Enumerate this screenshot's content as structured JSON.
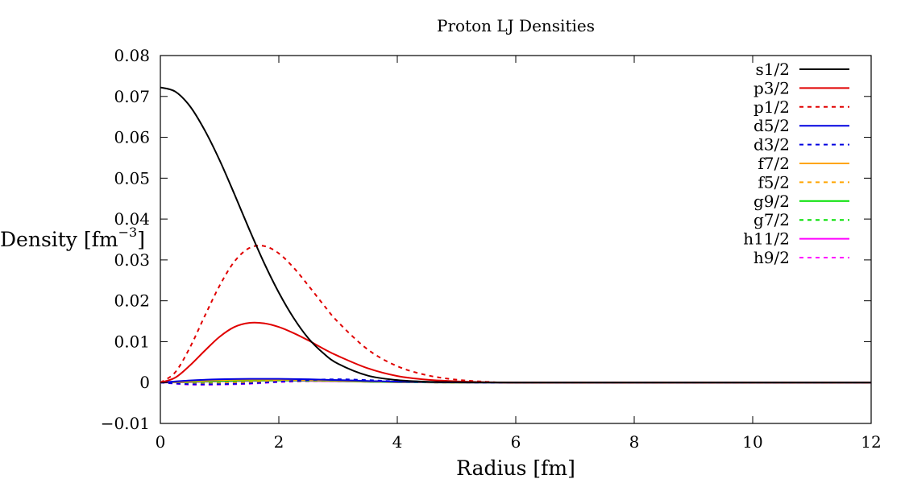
{
  "chart_data": {
    "type": "line",
    "title": "Proton LJ Densities",
    "xlabel": "Radius [fm]",
    "ylabel": "Density [fm",
    "ylabel_sup": "−3",
    "ylabel_close": "]",
    "xlim": [
      0,
      12
    ],
    "ylim": [
      -0.01,
      0.08
    ],
    "x_ticks": [
      {
        "value": 0,
        "label": "0"
      },
      {
        "value": 2,
        "label": "2"
      },
      {
        "value": 4,
        "label": "4"
      },
      {
        "value": 6,
        "label": "6"
      },
      {
        "value": 8,
        "label": "8"
      },
      {
        "value": 10,
        "label": "10"
      },
      {
        "value": 12,
        "label": "12"
      }
    ],
    "y_ticks": [
      {
        "value": -0.01,
        "label": "−0.01"
      },
      {
        "value": 0,
        "label": "0"
      },
      {
        "value": 0.01,
        "label": "0.01"
      },
      {
        "value": 0.02,
        "label": "0.02"
      },
      {
        "value": 0.03,
        "label": "0.03"
      },
      {
        "value": 0.04,
        "label": "0.04"
      },
      {
        "value": 0.05,
        "label": "0.05"
      },
      {
        "value": 0.06,
        "label": "0.06"
      },
      {
        "value": 0.07,
        "label": "0.07"
      },
      {
        "value": 0.08,
        "label": "0.08"
      }
    ],
    "grid": false,
    "legend_position": "top-right",
    "series": [
      {
        "name": "s1/2",
        "color": "#000000",
        "dash": false,
        "x": [
          0,
          0.25,
          0.5,
          0.75,
          1.0,
          1.25,
          1.5,
          1.75,
          2.0,
          2.25,
          2.5,
          2.75,
          3.0,
          3.5,
          4.0,
          4.5,
          5.0,
          6.0,
          8.0,
          10.0,
          12.0
        ],
        "y": [
          0.0722,
          0.0712,
          0.0676,
          0.0617,
          0.0544,
          0.0461,
          0.0375,
          0.0293,
          0.022,
          0.0158,
          0.0108,
          0.0072,
          0.0046,
          0.0017,
          0.0006,
          0.0002,
          0.0001,
          0,
          0,
          0,
          0
        ]
      },
      {
        "name": "p3/2",
        "color": "#e00000",
        "dash": false,
        "x": [
          0,
          0.25,
          0.5,
          0.75,
          1.0,
          1.25,
          1.5,
          1.75,
          2.0,
          2.25,
          2.5,
          2.75,
          3.0,
          3.5,
          4.0,
          4.5,
          5.0,
          5.5,
          6.0,
          8.0,
          10.0,
          12.0
        ],
        "y": [
          0,
          0.0012,
          0.0042,
          0.0078,
          0.0112,
          0.0136,
          0.0146,
          0.0145,
          0.0136,
          0.0121,
          0.0103,
          0.0083,
          0.0065,
          0.0035,
          0.0016,
          0.0007,
          0.0003,
          0.0001,
          0,
          0,
          0,
          0
        ]
      },
      {
        "name": "p1/2",
        "color": "#e00000",
        "dash": true,
        "x": [
          0,
          0.25,
          0.5,
          0.75,
          1.0,
          1.25,
          1.5,
          1.75,
          2.0,
          2.25,
          2.5,
          2.75,
          3.0,
          3.5,
          4.0,
          4.5,
          5.0,
          5.5,
          6.0,
          8.0,
          10.0,
          12.0
        ],
        "y": [
          0,
          0.0025,
          0.0086,
          0.0163,
          0.0237,
          0.0296,
          0.0329,
          0.0334,
          0.0316,
          0.0281,
          0.0237,
          0.0191,
          0.0148,
          0.0081,
          0.004,
          0.0018,
          0.0007,
          0.0002,
          0,
          0,
          0,
          0
        ]
      },
      {
        "name": "d5/2",
        "color": "#0000e0",
        "dash": false,
        "x": [
          0,
          0.5,
          1.0,
          1.5,
          2.0,
          2.5,
          3.0,
          3.5,
          4.0,
          5.0,
          6.0,
          12.0
        ],
        "y": [
          0,
          0.0005,
          0.0008,
          0.0009,
          0.0009,
          0.0008,
          0.0006,
          0.0004,
          0.0002,
          5e-05,
          0,
          0
        ]
      },
      {
        "name": "d3/2",
        "color": "#0000e0",
        "dash": true,
        "x": [
          0,
          0.5,
          1.0,
          1.5,
          2.0,
          2.5,
          3.0,
          3.5,
          4.0,
          5.0,
          6.0,
          12.0
        ],
        "y": [
          0,
          -0.0004,
          -0.0004,
          -0.0002,
          0.0002,
          0.0006,
          0.0008,
          0.0006,
          0.0003,
          5e-05,
          0,
          0
        ]
      },
      {
        "name": "f7/2",
        "color": "#ffa500",
        "dash": false,
        "x": [
          0,
          0.5,
          1.0,
          1.5,
          2.0,
          2.5,
          3.0,
          3.5,
          4.0,
          5.0,
          6.0,
          12.0
        ],
        "y": [
          0,
          0.0003,
          0.0006,
          0.0007,
          0.0007,
          0.0006,
          0.0005,
          0.0003,
          0.0002,
          5e-05,
          0,
          0
        ]
      },
      {
        "name": "f5/2",
        "color": "#ffa500",
        "dash": true,
        "x": [
          0,
          0.5,
          1.0,
          1.5,
          2.0,
          2.5,
          3.0,
          3.5,
          4.0,
          5.0,
          6.0,
          12.0
        ],
        "y": [
          0,
          -0.0003,
          -0.0002,
          0.0001,
          0.0004,
          0.0006,
          0.0005,
          0.0003,
          0.0001,
          0,
          0,
          0
        ]
      },
      {
        "name": "g9/2",
        "color": "#00e000",
        "dash": false,
        "x": [
          0,
          0.5,
          1.0,
          1.5,
          2.0,
          2.5,
          3.0,
          3.5,
          4.0,
          5.0,
          6.0,
          12.0
        ],
        "y": [
          0,
          0.0002,
          0.0004,
          0.0005,
          0.0005,
          0.0005,
          0.0004,
          0.0002,
          0.0001,
          0,
          0,
          0
        ]
      },
      {
        "name": "g7/2",
        "color": "#00e000",
        "dash": true,
        "x": [
          0,
          0.5,
          1.0,
          1.5,
          2.0,
          2.5,
          3.0,
          3.5,
          4.0,
          5.0,
          6.0,
          12.0
        ],
        "y": [
          0,
          -0.0002,
          -0.0001,
          0.0001,
          0.0003,
          0.0004,
          0.0004,
          0.0002,
          0.0001,
          0,
          0,
          0
        ]
      },
      {
        "name": "h11/2",
        "color": "#ff00ff",
        "dash": false,
        "x": [
          0,
          0.5,
          1.0,
          1.5,
          2.0,
          2.5,
          3.0,
          3.5,
          4.0,
          5.0,
          6.0,
          12.0
        ],
        "y": [
          0,
          0.0001,
          0.0003,
          0.0004,
          0.0005,
          0.0004,
          0.0003,
          0.0002,
          0.0001,
          0,
          0,
          0
        ]
      },
      {
        "name": "h9/2",
        "color": "#ff00ff",
        "dash": true,
        "x": [
          0,
          0.5,
          1.0,
          1.5,
          2.0,
          2.5,
          3.0,
          3.5,
          4.0,
          5.0,
          6.0,
          12.0
        ],
        "y": [
          0,
          -0.0005,
          -0.0005,
          -0.0003,
          0.0001,
          0.0003,
          0.0003,
          0.0002,
          0.0001,
          0,
          0,
          0
        ]
      }
    ]
  }
}
